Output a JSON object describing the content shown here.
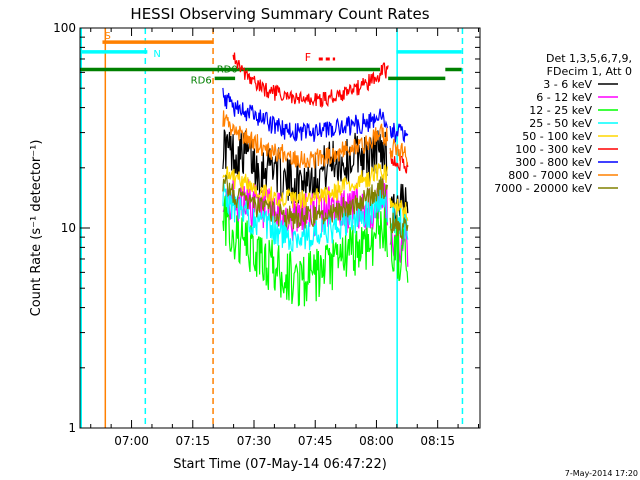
{
  "chart_data": {
    "type": "line",
    "title": "HESSI Observing Summary Count Rates",
    "xlabel": "Start Time (07-May-14 06:47:22)",
    "ylabel": "Count Rate (s⁻¹ detector⁻¹)",
    "x_unit": "minutes after 06:47:22",
    "xlim": [
      0,
      98
    ],
    "ylim": [
      1,
      100
    ],
    "yscale": "log",
    "x_ticks": [
      {
        "x": 12.63,
        "label": "07:00"
      },
      {
        "x": 27.63,
        "label": "07:15"
      },
      {
        "x": 42.63,
        "label": "07:30"
      },
      {
        "x": 57.63,
        "label": "07:45"
      },
      {
        "x": 72.63,
        "label": "08:00"
      },
      {
        "x": 87.63,
        "label": "08:15"
      }
    ],
    "y_ticks": [
      {
        "y": 1,
        "label": "1"
      },
      {
        "y": 10,
        "label": "10"
      },
      {
        "y": 100,
        "label": "100"
      }
    ],
    "legend": {
      "position": "right",
      "header": [
        "Det 1,3,5,6,7,9,",
        "FDecim 1, Att 0"
      ]
    },
    "series": [
      {
        "name": "3 - 6 keV",
        "color": "#000000",
        "segments": [
          {
            "x": [
              35,
              38,
              41,
              44,
              47,
              50,
              53,
              56,
              59,
              62,
              65,
              68,
              71,
              74,
              75.5
            ],
            "y": [
              26,
              23,
              24,
              19,
              22,
              17,
              17,
              18,
              19,
              22,
              21,
              24,
              22,
              26,
              22
            ]
          },
          {
            "x": [
              76,
              77,
              78,
              79,
              80,
              80.5
            ],
            "y": [
              14,
              13,
              12,
              13,
              12,
              12
            ]
          }
        ],
        "noise": 0.12
      },
      {
        "name": "6 - 12 keV",
        "color": "#ff00ff",
        "segments": [
          {
            "x": [
              35,
              38,
              41,
              44,
              47,
              50,
              53,
              56,
              59,
              62,
              65,
              68,
              71,
              74,
              75.5
            ],
            "y": [
              16,
              13,
              14,
              12,
              12,
              11,
              11,
              12,
              12,
              13,
              12,
              13,
              12,
              14,
              12
            ]
          },
          {
            "x": [
              76,
              77,
              78,
              79,
              80,
              80.5
            ],
            "y": [
              9,
              9,
              9,
              8,
              8,
              8
            ]
          }
        ],
        "noise": 0.12
      },
      {
        "name": "12 - 25 keV",
        "color": "#00ff00",
        "segments": [
          {
            "x": [
              35,
              38,
              41,
              44,
              47,
              50,
              53,
              56,
              59,
              62,
              65,
              68,
              71,
              74,
              75.5
            ],
            "y": [
              11,
              9,
              8,
              7,
              6.5,
              5.8,
              5.5,
              5.6,
              5.8,
              6.5,
              7.2,
              8,
              8.5,
              10,
              9.5
            ]
          },
          {
            "x": [
              76,
              77,
              78,
              79,
              80,
              80.5
            ],
            "y": [
              8,
              8,
              7.5,
              7.5,
              7,
              7
            ]
          }
        ],
        "noise": 0.14
      },
      {
        "name": "25 - 50 keV",
        "color": "#00ffff",
        "segments": [
          {
            "x": [
              35,
              38,
              41,
              44,
              47,
              50,
              53,
              56,
              59,
              62,
              65,
              68,
              71,
              74,
              75.5
            ],
            "y": [
              15,
              12.5,
              11.5,
              10.5,
              9.8,
              9.2,
              9,
              9.1,
              9.3,
              9.8,
              10.5,
              11.2,
              12,
              14,
              12.5
            ]
          },
          {
            "x": [
              76,
              77,
              78,
              79,
              80,
              80.5
            ],
            "y": [
              11,
              11,
              10.5,
              10.5,
              10,
              10
            ]
          }
        ],
        "noise": 0.08
      },
      {
        "name": "50 - 100 keV",
        "color": "#ffd700",
        "segments": [
          {
            "x": [
              35,
              38,
              41,
              44,
              47,
              50,
              53,
              56,
              59,
              62,
              65,
              68,
              71,
              74,
              75.5
            ],
            "y": [
              20,
              17.5,
              16.5,
              15.5,
              14.5,
              14,
              13.8,
              13.9,
              14.2,
              15,
              16,
              17,
              18,
              20,
              18
            ]
          },
          {
            "x": [
              76,
              77,
              78,
              79,
              80,
              80.5
            ],
            "y": [
              13,
              13,
              12.5,
              12.5,
              12,
              12
            ]
          }
        ],
        "noise": 0.05
      },
      {
        "name": "100 - 300 keV",
        "color": "#ff0000",
        "segments": [
          {
            "x": [
              37.5,
              38.5,
              40,
              42,
              44,
              47,
              50,
              53,
              56,
              59,
              62,
              65,
              68,
              71,
              73,
              74.5,
              75.5
            ],
            "y": [
              75,
              68,
              58,
              54,
              51,
              48,
              45.5,
              44,
              43.5,
              44,
              45.5,
              47,
              50,
              54,
              58,
              62,
              60
            ]
          },
          {
            "x": [
              76,
              77,
              78,
              79,
              80,
              80.5
            ],
            "y": [
              23,
              22,
              21,
              21,
              20,
              20
            ]
          }
        ],
        "noise": 0.04
      },
      {
        "name": "300 - 800 keV",
        "color": "#0000ff",
        "segments": [
          {
            "x": [
              35,
              38,
              41,
              44,
              47,
              50,
              53,
              56,
              59,
              62,
              65,
              68,
              71,
              74,
              75.5
            ],
            "y": [
              45,
              40,
              38,
              35,
              33,
              31,
              30.5,
              30,
              30.5,
              31,
              32,
              33,
              34,
              36,
              33
            ]
          },
          {
            "x": [
              76,
              77,
              78,
              79,
              80,
              80.5
            ],
            "y": [
              30,
              30,
              30,
              29,
              29,
              29
            ]
          }
        ],
        "noise": 0.05
      },
      {
        "name": "800 - 7000 keV",
        "color": "#ff8000",
        "segments": [
          {
            "x": [
              35,
              38,
              41,
              44,
              47,
              50,
              53,
              56,
              59,
              62,
              65,
              68,
              71,
              74,
              75.5
            ],
            "y": [
              35,
              30,
              28,
              26,
              24.5,
              23.5,
              22.5,
              22,
              22.5,
              23.5,
              24.5,
              25.5,
              27,
              30,
              28
            ]
          },
          {
            "x": [
              76,
              77,
              78,
              79,
              80,
              80.5
            ],
            "y": [
              25,
              25,
              24,
              24,
              23,
              23
            ]
          }
        ],
        "noise": 0.05
      },
      {
        "name": "7000 - 20000 keV",
        "color": "#808000",
        "segments": [
          {
            "x": [
              35,
              38,
              41,
              44,
              47,
              50,
              53,
              56,
              59,
              62,
              65,
              68,
              71,
              74,
              75.5
            ],
            "y": [
              17,
              14.5,
              13.5,
              12.5,
              12,
              11.5,
              11.2,
              11.3,
              11.6,
              12,
              12.8,
              13.5,
              14.5,
              16,
              14.5
            ]
          },
          {
            "x": [
              76,
              77,
              78,
              79,
              80,
              80.5
            ],
            "y": [
              10.5,
              10.5,
              10,
              10,
              9.8,
              9.8
            ]
          }
        ],
        "noise": 0.06
      }
    ],
    "annotations": {
      "bars": [
        {
          "label": "S",
          "color": "#ff8000",
          "x": [
            5.5,
            32.5
          ],
          "y": 85,
          "width": 3.5
        },
        {
          "label": "N",
          "color": "#00ffff",
          "x": [
            0,
            16.5
          ],
          "y": 76,
          "width": 3.5
        },
        {
          "label": "",
          "color": "#00ffff",
          "x": [
            77.5,
            93.5
          ],
          "y": 76,
          "width": 3.5
        },
        {
          "label": "RD0",
          "color": "#008000",
          "x": [
            0,
            73.5
          ],
          "y": 62,
          "width": 3.5
        },
        {
          "label": "",
          "color": "#008000",
          "x": [
            75.5,
            89.5
          ],
          "y": 56,
          "width": 3.5
        },
        {
          "label": "",
          "color": "#008000",
          "x": [
            89.5,
            93.5
          ],
          "y": 62,
          "width": 3.5
        },
        {
          "label": "RD6",
          "color": "#008000",
          "x": [
            33,
            38
          ],
          "y": 56,
          "width": 3.5
        }
      ],
      "flare": {
        "label": "F",
        "color": "#ff0000",
        "x": [
          58.5,
          62.5
        ],
        "y": 70
      },
      "vlines": [
        {
          "x": 6.2,
          "color": "#ff8000",
          "dash": false
        },
        {
          "x": 16.0,
          "color": "#00ffff",
          "dash": true
        },
        {
          "x": 32.6,
          "color": "#ff8000",
          "dash": true
        },
        {
          "x": 77.7,
          "color": "#00ffff",
          "dash": false
        },
        {
          "x": 93.7,
          "color": "#00ffff",
          "dash": true
        }
      ],
      "left_edge": {
        "color": "#00ffff"
      }
    },
    "footer": "7-May-2014 17:20"
  }
}
